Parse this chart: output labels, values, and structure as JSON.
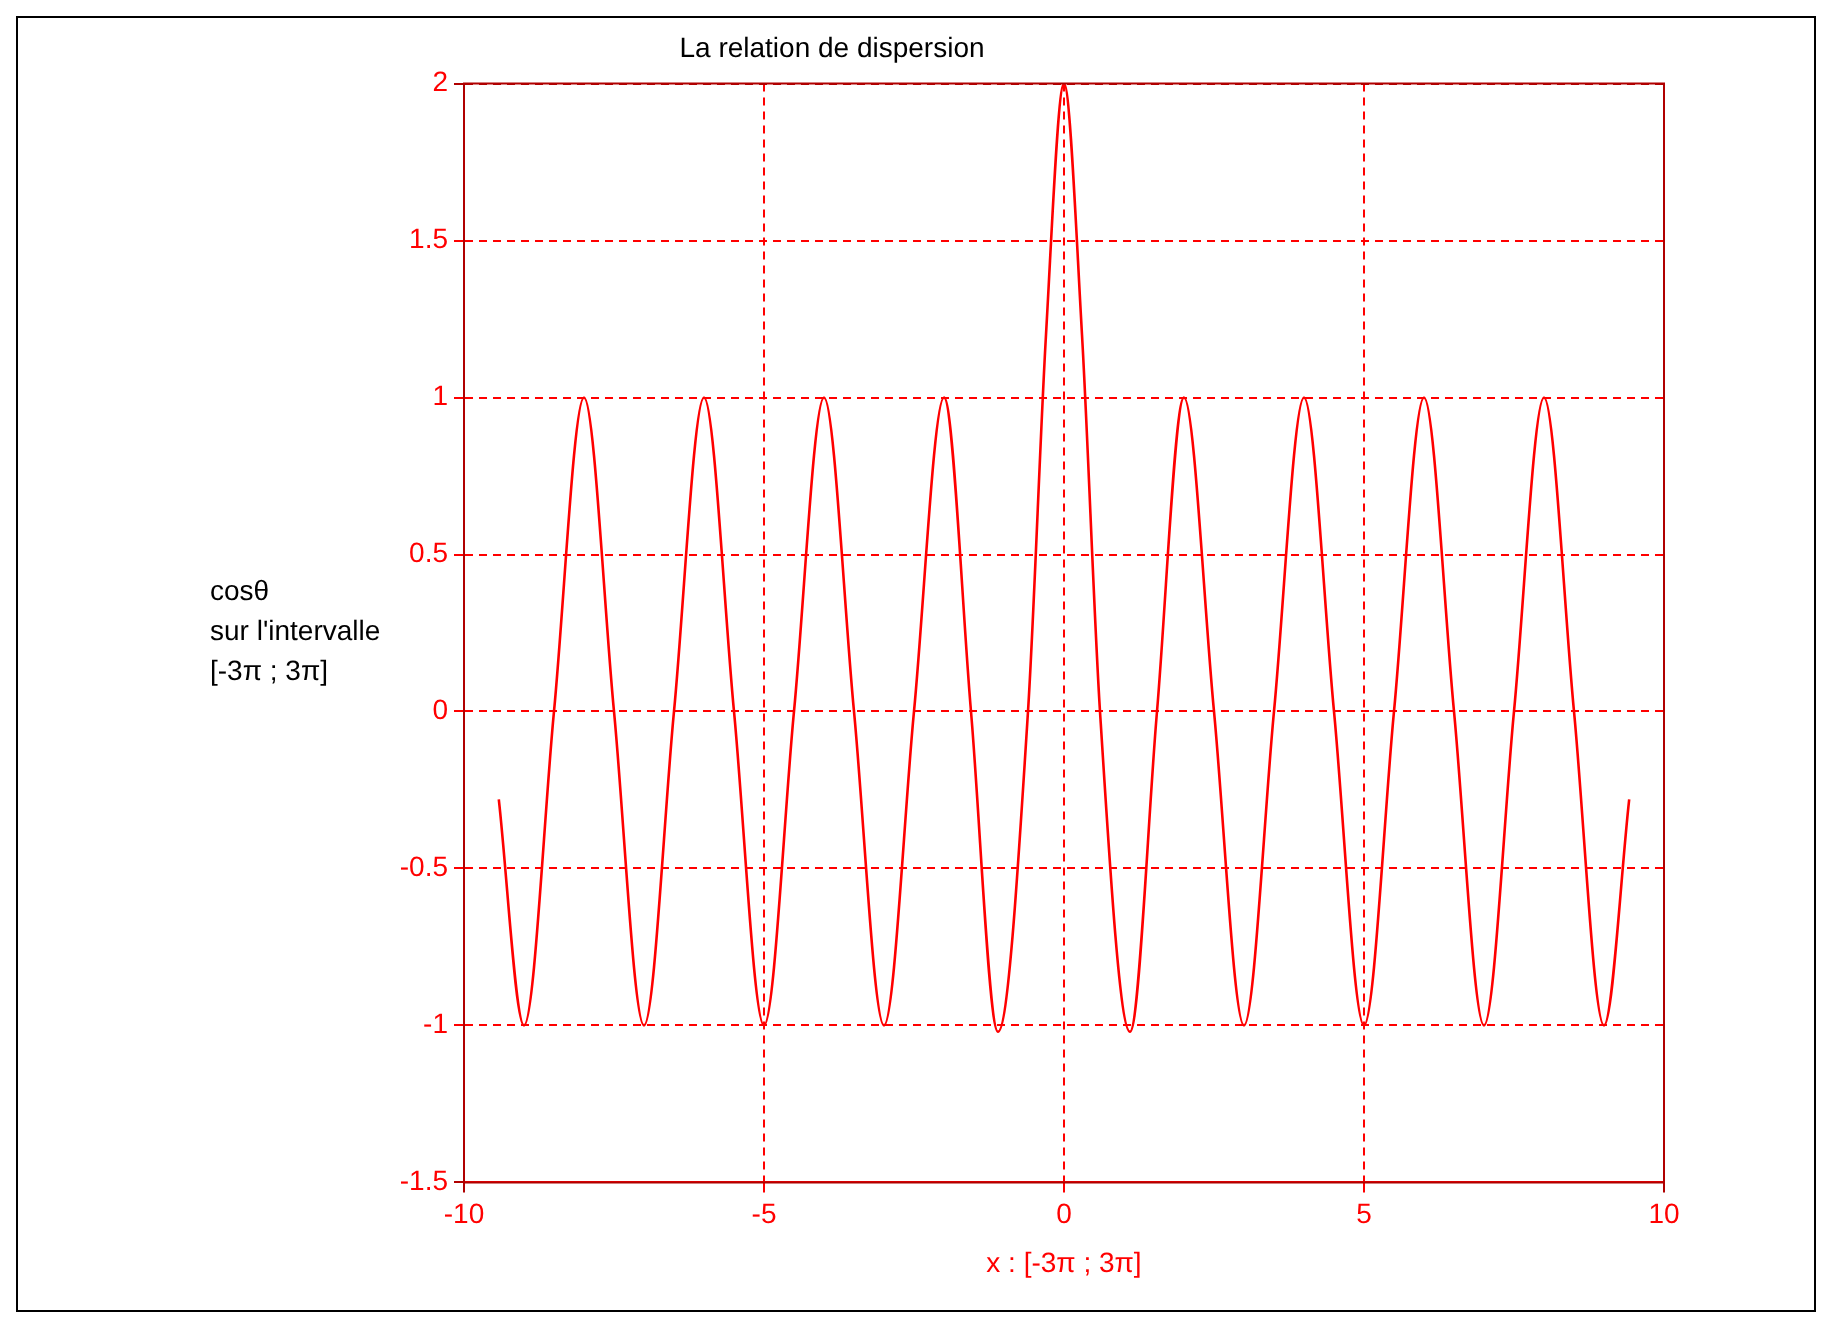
{
  "chart_data": {
    "type": "line",
    "title": "La relation de dispersion",
    "xlabel": "x : [-3π ; 3π]",
    "ylabel": "cosθ\nsur l'intervalle\n[-3π ; 3π]",
    "x": [
      -9.42,
      -9,
      -8.5,
      -8,
      -7.5,
      -7,
      -6.5,
      -6,
      -5.5,
      -5,
      -4.5,
      -4,
      -3.5,
      -3,
      -2.5,
      -2,
      -1.55,
      -1.1,
      -0.6,
      -0.3,
      0,
      0.3,
      0.6,
      1.1,
      1.55,
      2,
      2.5,
      3,
      3.5,
      4,
      4.5,
      5,
      5.5,
      6,
      6.5,
      7,
      7.5,
      8,
      8.5,
      9,
      9.42
    ],
    "series": [
      {
        "color": "#ff0000",
        "values": [
          -0.28,
          -1,
          0,
          1,
          0,
          -1,
          0,
          1,
          0,
          -1,
          0,
          1,
          0,
          -1,
          0,
          1,
          0,
          -1.02,
          0,
          1.2,
          2,
          1.2,
          0,
          -1.02,
          0,
          1,
          0,
          -1,
          0,
          1,
          0,
          -1,
          0,
          1,
          0,
          -1,
          0,
          1,
          0,
          -1,
          -0.28
        ]
      }
    ],
    "xlim": [
      -10,
      10
    ],
    "xticks": [
      -10,
      -5,
      0,
      5,
      10
    ],
    "ylim": [
      -1.5,
      2
    ],
    "yticks": [
      -1.5,
      -1,
      -0.5,
      0,
      0.5,
      1,
      1.5,
      2
    ],
    "grid": true,
    "legend": false,
    "marker": "none",
    "line_style": "solid"
  }
}
